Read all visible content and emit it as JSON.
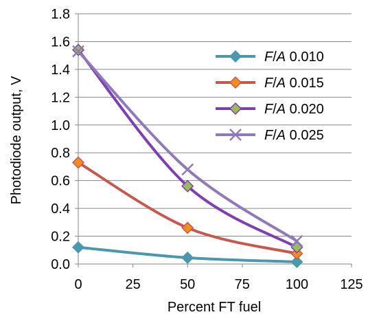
{
  "chart_data": {
    "type": "line",
    "xlabel": "Percent FT fuel",
    "ylabel": "Photodiode output, V",
    "xlim": [
      0,
      125
    ],
    "ylim": [
      0,
      1.8
    ],
    "x_ticks": [
      "0",
      "25",
      "50",
      "75",
      "100",
      "125"
    ],
    "y_ticks": [
      "0.0",
      "0.2",
      "0.4",
      "0.6",
      "0.8",
      "1.0",
      "1.2",
      "1.4",
      "1.6",
      "1.8"
    ],
    "grid": "horizontal",
    "legend_position": "top-right",
    "series": [
      {
        "name_prefix": "F/A",
        "name_value": "0.010",
        "color": "#4a98ad",
        "marker": "diamond",
        "x": [
          0,
          50,
          100
        ],
        "y": [
          0.12,
          0.045,
          0.015
        ]
      },
      {
        "name_prefix": "F/A",
        "name_value": "0.015",
        "color": "#c5594f",
        "marker": "diamond",
        "x": [
          0,
          50,
          100
        ],
        "y": [
          0.73,
          0.26,
          0.075
        ]
      },
      {
        "name_prefix": "F/A",
        "name_value": "0.020",
        "color": "#7e3fb1",
        "marker": "diamond",
        "x": [
          0,
          50,
          100
        ],
        "y": [
          1.54,
          0.56,
          0.12
        ]
      },
      {
        "name_prefix": "F/A",
        "name_value": "0.025",
        "color": "#9079b8",
        "marker": "x",
        "x": [
          0,
          50,
          100
        ],
        "y": [
          1.53,
          0.68,
          0.165
        ]
      }
    ],
    "marker_colors": {
      "diamond_fill_blue": "#4a98ad",
      "diamond_fill_orange": "#f48c1e",
      "diamond_fill_olive": "#9bbb59"
    }
  }
}
